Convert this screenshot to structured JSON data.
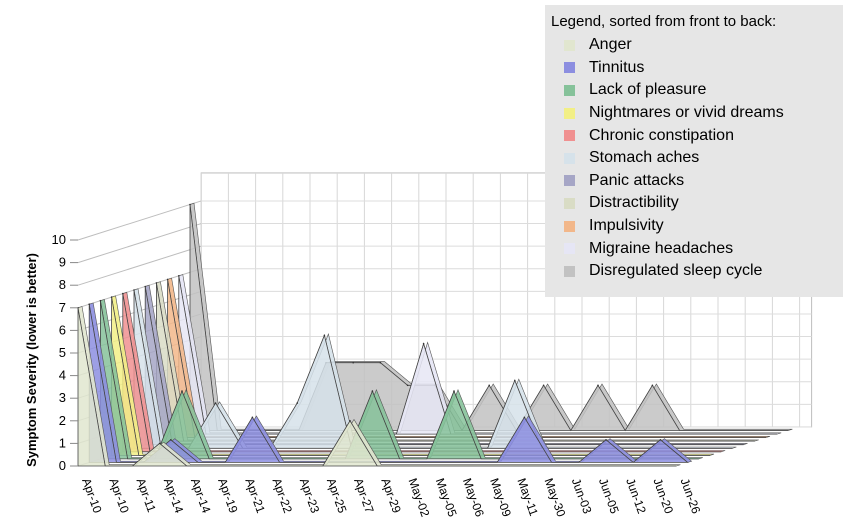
{
  "chart_data": {
    "type": "area",
    "ylabel": "Symptom Severity (lower is better)",
    "ylim": [
      0,
      10
    ],
    "yticks": [
      "0",
      "1",
      "2",
      "3",
      "4",
      "5",
      "6",
      "7",
      "8",
      "9",
      "10"
    ],
    "categories": [
      "Apr-10",
      "Apr-10",
      "Apr-11",
      "Apr-14",
      "Apr-14",
      "Apr-19",
      "Apr-21",
      "Apr-22",
      "Apr-23",
      "Apr-25",
      "Apr-27",
      "Apr-29",
      "May-02",
      "May-05",
      "May-06",
      "May-09",
      "May-11",
      "May-30",
      "Jun-03",
      "Jun-05",
      "Jun-12",
      "Jun-20",
      "Jun-26"
    ],
    "legend_title": "Legend, sorted from front to back:",
    "legend_placement": "top-right",
    "grid": true,
    "series": [
      {
        "name": "Anger",
        "color": "#e1e6cf",
        "values": [
          7,
          0,
          0,
          1,
          0,
          0,
          0,
          0,
          0,
          0,
          2,
          0,
          0,
          0,
          0,
          0,
          0,
          0,
          0,
          0,
          0,
          0,
          0
        ]
      },
      {
        "name": "Tinnitus",
        "color": "#8c8ee0",
        "values": [
          7,
          0,
          0,
          1,
          0,
          0,
          2,
          0,
          0,
          0,
          0,
          0,
          0,
          0,
          0,
          0,
          2,
          0,
          0,
          1,
          0,
          1,
          0
        ]
      },
      {
        "name": "Lack of pleasure",
        "color": "#86c29a",
        "values": [
          7,
          0,
          0,
          3,
          0,
          0,
          0,
          0,
          0,
          0,
          3,
          0,
          0,
          3,
          0,
          0,
          0,
          0,
          0,
          0,
          0,
          0,
          0
        ]
      },
      {
        "name": "Nightmares or vivid dreams",
        "color": "#f2ef86",
        "values": [
          7,
          0,
          0,
          0,
          0,
          0,
          0,
          0,
          0,
          0,
          0,
          0,
          0,
          0,
          0,
          0,
          0,
          0,
          0,
          0,
          0,
          0,
          0
        ]
      },
      {
        "name": "Chronic constipation",
        "color": "#f09090",
        "values": [
          7,
          0,
          0,
          0,
          0,
          0,
          0,
          0,
          0,
          0,
          0,
          0,
          0,
          0,
          0,
          0,
          0,
          0,
          0,
          0,
          0,
          0,
          0
        ]
      },
      {
        "name": "Stomach aches",
        "color": "#d6e2ea",
        "values": [
          7,
          0,
          0,
          2,
          0,
          0,
          2,
          5,
          0,
          0,
          0,
          0,
          0,
          0,
          3,
          0,
          0,
          0,
          0,
          0,
          0,
          0,
          0
        ]
      },
      {
        "name": "Panic attacks",
        "color": "#a6a6c6",
        "values": [
          7,
          0,
          0,
          0,
          0,
          0,
          0,
          0,
          0,
          0,
          0,
          0,
          0,
          0,
          0,
          0,
          0,
          0,
          0,
          0,
          0,
          0,
          0
        ]
      },
      {
        "name": "Distractibility",
        "color": "#d9dcc5",
        "values": [
          7,
          0,
          0,
          0,
          0,
          0,
          0,
          0,
          0,
          0,
          0,
          0,
          0,
          0,
          0,
          0,
          0,
          0,
          0,
          0,
          0,
          0,
          0
        ]
      },
      {
        "name": "Impulsivity",
        "color": "#f2b78a",
        "values": [
          7,
          0,
          0,
          0,
          0,
          0,
          0,
          0,
          0,
          0,
          0,
          0,
          0,
          0,
          0,
          0,
          0,
          0,
          0,
          0,
          0,
          0,
          0
        ]
      },
      {
        "name": "Migraine headaches",
        "color": "#e6e6f5",
        "values": [
          7,
          0,
          0,
          0,
          0,
          0,
          0,
          0,
          0,
          4,
          0,
          0,
          0,
          0,
          0,
          0,
          0,
          0,
          0,
          0,
          0,
          0,
          0
        ]
      },
      {
        "name": "Disregulated sleep cycle",
        "color": "#c2c2c2",
        "values": [
          10,
          0,
          0,
          0,
          0,
          3,
          3,
          3,
          2,
          2,
          0,
          2,
          0,
          2,
          0,
          2,
          0,
          2,
          0,
          0,
          0,
          0,
          0
        ]
      }
    ]
  }
}
